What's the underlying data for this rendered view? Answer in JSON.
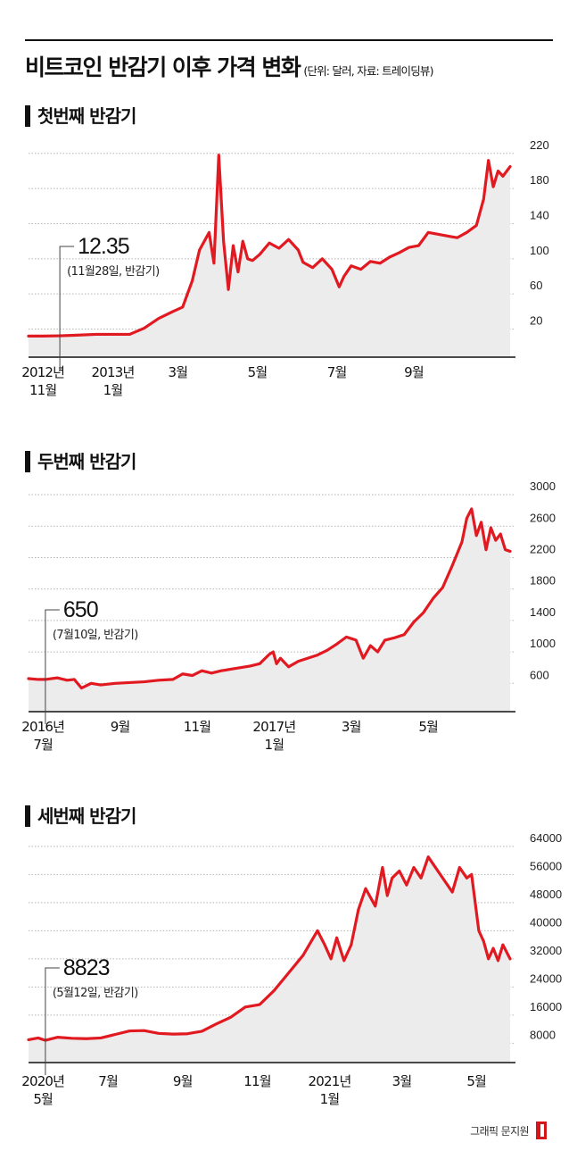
{
  "title": "비트코인 반감기 이후 가격 변화",
  "subtitle": "(단위: 달러, 자료: 트레이딩뷰)",
  "footer": "그래픽 문지원",
  "colors": {
    "line": "#e11a22",
    "fill": "#ececec",
    "grid": "#b5b5b5"
  },
  "chart_data": [
    {
      "type": "area",
      "title": "첫번째 반감기",
      "yticks": [
        20,
        60,
        100,
        140,
        180,
        220
      ],
      "ylim": [
        -12,
        232
      ],
      "xlim": [
        0,
        100
      ],
      "x_ticks": [
        {
          "x": 3,
          "line1": "2012년",
          "line2": "11월"
        },
        {
          "x": 17.5,
          "line1": "2013년",
          "line2": "1월"
        },
        {
          "x": 31,
          "line1": "3월",
          "line2": ""
        },
        {
          "x": 47.5,
          "line1": "5월",
          "line2": ""
        },
        {
          "x": 64,
          "line1": "7월",
          "line2": ""
        },
        {
          "x": 80,
          "line1": "9월",
          "line2": ""
        }
      ],
      "callout": {
        "value": "12.35",
        "label": "(11월28일, 반감기)",
        "x": 6.5,
        "y": 12.35
      },
      "x": [
        0,
        3,
        6.5,
        10,
        14,
        17.5,
        21,
        24,
        27,
        30,
        32,
        34,
        35.5,
        37.5,
        38.5,
        39.5,
        40.5,
        41.5,
        42.5,
        43.5,
        44.5,
        45.5,
        46.5,
        48,
        50,
        52,
        54,
        56,
        57,
        59,
        61,
        63,
        64.5,
        65.5,
        67,
        69,
        71,
        73,
        75,
        77,
        79,
        81,
        83,
        85,
        87,
        89,
        91,
        93,
        94.5,
        95.5,
        96.5,
        97.5,
        98.5,
        100
      ],
      "y": [
        12,
        12,
        12.35,
        13,
        14,
        14,
        14,
        21,
        32,
        40,
        45,
        75,
        110,
        130,
        95,
        218,
        120,
        65,
        115,
        85,
        120,
        100,
        98,
        105,
        118,
        112,
        122,
        110,
        96,
        90,
        100,
        88,
        68,
        80,
        92,
        88,
        97,
        95,
        102,
        107,
        113,
        115,
        130,
        128,
        126,
        124,
        130,
        138,
        168,
        212,
        182,
        200,
        194,
        205
      ]
    },
    {
      "type": "area",
      "title": "두번째 반감기",
      "yticks": [
        600,
        1000,
        1400,
        1800,
        2200,
        2600,
        3000
      ],
      "ylim": [
        240,
        3080
      ],
      "xlim": [
        0,
        100
      ],
      "x_ticks": [
        {
          "x": 3,
          "line1": "2016년",
          "line2": "7월"
        },
        {
          "x": 19,
          "line1": "9월",
          "line2": ""
        },
        {
          "x": 35,
          "line1": "11월",
          "line2": ""
        },
        {
          "x": 51,
          "line1": "2017년",
          "line2": "1월"
        },
        {
          "x": 67,
          "line1": "3월",
          "line2": ""
        },
        {
          "x": 83,
          "line1": "5월",
          "line2": ""
        }
      ],
      "callout": {
        "value": "650",
        "label": "(7월10일, 반감기)",
        "x": 3.5,
        "y": 650
      },
      "x": [
        0,
        2,
        3.5,
        6,
        8,
        9.5,
        11,
        13,
        15,
        18,
        21,
        24,
        27,
        30,
        32,
        34,
        36,
        38,
        40,
        42,
        44,
        46,
        48,
        50,
        50.8,
        51.5,
        52.3,
        54,
        56,
        58,
        60,
        62,
        64,
        66,
        68,
        69.5,
        71,
        72.5,
        74,
        76,
        78,
        80,
        82,
        84,
        86,
        88,
        90,
        91,
        92,
        93,
        94,
        95,
        96,
        97,
        98,
        99,
        100
      ],
      "y": [
        660,
        650,
        650,
        670,
        640,
        650,
        540,
        600,
        580,
        600,
        610,
        620,
        640,
        650,
        720,
        700,
        760,
        730,
        760,
        780,
        800,
        820,
        850,
        970,
        1000,
        850,
        920,
        810,
        880,
        920,
        960,
        1020,
        1100,
        1190,
        1150,
        920,
        1080,
        1000,
        1150,
        1180,
        1220,
        1380,
        1500,
        1680,
        1820,
        2100,
        2400,
        2700,
        2820,
        2480,
        2650,
        2300,
        2580,
        2420,
        2500,
        2300,
        2280
      ]
    },
    {
      "type": "area",
      "title": "세번째 반감기",
      "yticks": [
        8000,
        16000,
        24000,
        32000,
        40000,
        48000,
        56000,
        64000
      ],
      "ylim": [
        2500,
        66000
      ],
      "xlim": [
        0,
        100
      ],
      "x_ticks": [
        {
          "x": 3,
          "line1": "2020년",
          "line2": "5월"
        },
        {
          "x": 16.5,
          "line1": "7월",
          "line2": ""
        },
        {
          "x": 32,
          "line1": "9월",
          "line2": ""
        },
        {
          "x": 47.5,
          "line1": "11월",
          "line2": ""
        },
        {
          "x": 62.5,
          "line1": "2021년",
          "line2": "1월"
        },
        {
          "x": 77.5,
          "line1": "3월",
          "line2": ""
        },
        {
          "x": 93,
          "line1": "5월",
          "line2": ""
        }
      ],
      "callout": {
        "value": "8823",
        "label": "(5월12일, 반감기)",
        "x": 3.5,
        "y": 8823
      },
      "x": [
        0,
        2,
        3.5,
        6,
        9,
        12,
        15,
        18,
        21,
        24,
        27,
        30,
        33,
        36,
        39,
        42,
        45,
        48,
        51,
        54,
        57,
        60,
        61.5,
        62.8,
        64,
        65.5,
        67,
        68.5,
        70,
        72,
        73.5,
        74.5,
        75.5,
        77,
        78.5,
        80,
        81.5,
        83,
        85,
        86.5,
        88,
        89.5,
        91,
        92,
        93.5,
        94.5,
        95.5,
        96.5,
        97.5,
        98.5,
        100
      ],
      "y": [
        9000,
        9500,
        8823,
        9700,
        9400,
        9300,
        9500,
        10500,
        11500,
        11600,
        10800,
        10600,
        10700,
        11400,
        13500,
        15400,
        18300,
        19000,
        23000,
        28000,
        33000,
        40000,
        36000,
        32000,
        38000,
        31500,
        36000,
        46000,
        52000,
        47000,
        58000,
        50000,
        55000,
        57000,
        53000,
        58000,
        55000,
        61000,
        57000,
        54000,
        51000,
        58000,
        55000,
        56000,
        40000,
        37000,
        32000,
        35000,
        31500,
        36000,
        32000
      ]
    }
  ]
}
